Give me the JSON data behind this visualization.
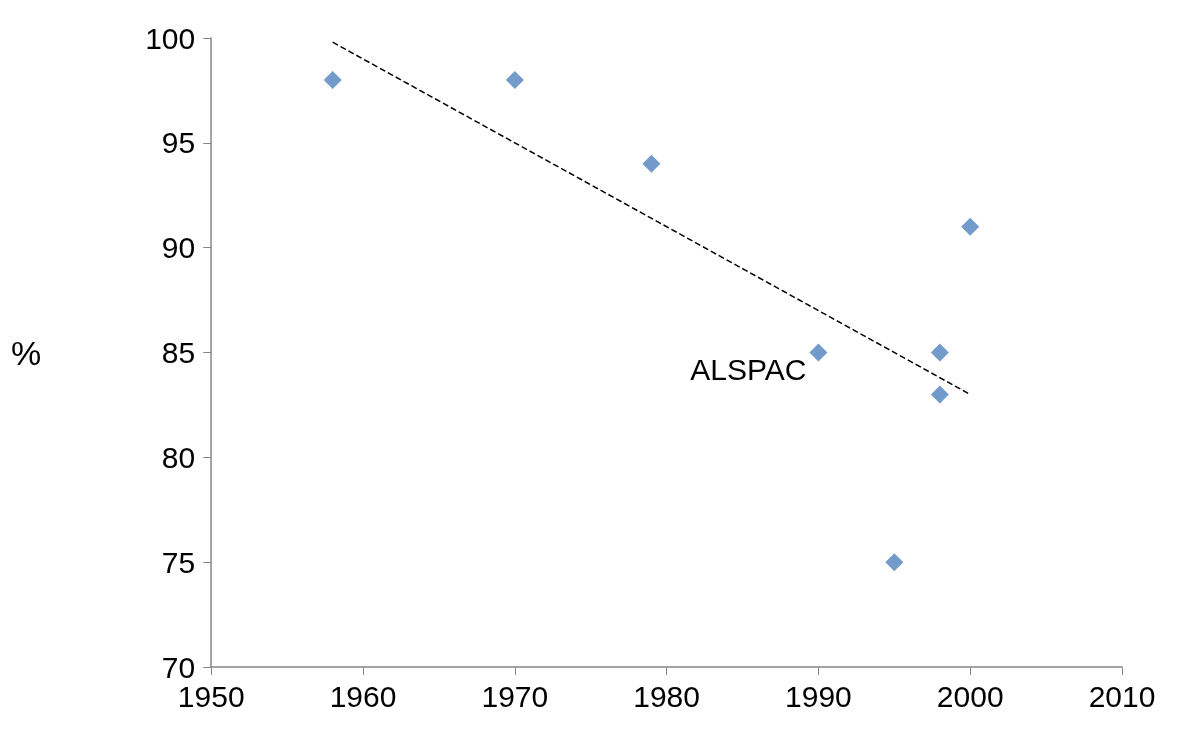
{
  "chart_data": {
    "type": "scatter",
    "ylabel": "%",
    "xlim": [
      1950,
      2010
    ],
    "xticks": [
      1950,
      1960,
      1970,
      1980,
      1990,
      2000,
      2010
    ],
    "ylim": [
      70,
      100
    ],
    "yticks": [
      70,
      75,
      80,
      85,
      90,
      95,
      100
    ],
    "grid": false,
    "marker": "diamond",
    "series": [
      {
        "color": "#4f81bd",
        "x": [
          1958,
          1970,
          1979,
          1990,
          1995,
          1998,
          1998,
          2000
        ],
        "values": [
          98,
          98,
          94,
          85,
          75,
          85,
          83,
          91
        ]
      },
      {
        "type": "line",
        "color": "#000000",
        "line_style": "dashed",
        "marker": "none",
        "x": [
          1958,
          2000
        ],
        "values": [
          99.8,
          83
        ]
      }
    ],
    "annotations": [
      {
        "text": "ALSPAC",
        "x": 1990,
        "y": 85
      }
    ]
  }
}
